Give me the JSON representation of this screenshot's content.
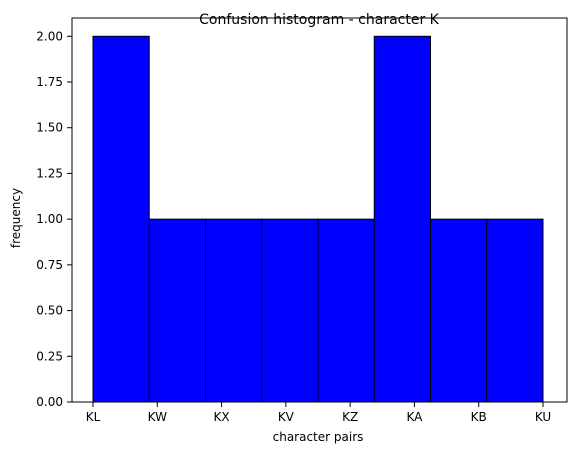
{
  "chart_data": {
    "type": "bar",
    "title": "Confusion histogram - character K",
    "xlabel": "character pairs",
    "ylabel": "frequency",
    "categories": [
      "KL",
      "KW",
      "KX",
      "KV",
      "KZ",
      "KA",
      "KB",
      "KU"
    ],
    "values": [
      2,
      1,
      1,
      1,
      1,
      2,
      1,
      1
    ],
    "ylim": [
      0,
      2.1
    ],
    "yticks": [
      "0.00",
      "0.25",
      "0.50",
      "0.75",
      "1.00",
      "1.25",
      "1.50",
      "1.75",
      "2.00"
    ],
    "bar_color": "#0000ff",
    "edge_color": "#000000",
    "grid": false
  }
}
